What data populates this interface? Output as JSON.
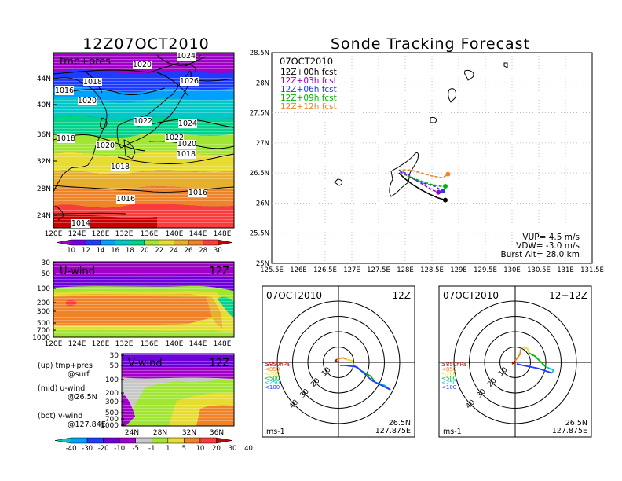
{
  "main_title": "12Z07OCT2010",
  "map": {
    "label": "tmp+pres",
    "lon_ticks": [
      "120E",
      "124E",
      "128E",
      "132E",
      "136E",
      "140E",
      "144E",
      "148E"
    ],
    "lat_ticks": [
      "44N",
      "40N",
      "36N",
      "32N",
      "28N",
      "24N"
    ],
    "isobar_labels": [
      "1024",
      "1020",
      "1018",
      "1016",
      "1020",
      "1026",
      "1022",
      "1024",
      "1018",
      "1022",
      "1020",
      "1020",
      "1018",
      "1018",
      "1016",
      "1016",
      "1014"
    ],
    "colorbar": {
      "labels": [
        "10",
        "12",
        "14",
        "16",
        "18",
        "20",
        "22",
        "24",
        "26",
        "28",
        "30"
      ],
      "colors": [
        "#a000c8",
        "#6e00dc",
        "#1e3cff",
        "#00a0ff",
        "#00c8c8",
        "#00d28c",
        "#a0e632",
        "#e6dc32",
        "#e6af2d",
        "#f08228",
        "#fa3c3c",
        "#c80000"
      ]
    }
  },
  "uwind": {
    "label": "U-wind",
    "time": "12Z",
    "p_ticks": [
      "30",
      "50",
      "100",
      "200",
      "300",
      "500",
      "700",
      "1000"
    ],
    "lon_ticks": [
      "120E",
      "124E",
      "128E",
      "132E",
      "136E",
      "140E",
      "144E",
      "148E"
    ]
  },
  "vwind": {
    "label": "V-wind",
    "time": "12Z",
    "p_ticks": [
      "30",
      "50",
      "100",
      "200",
      "300",
      "500",
      "700",
      "1000"
    ],
    "lat_ticks": [
      "24N",
      "28N",
      "32N",
      "36N"
    ]
  },
  "legend_text": [
    {
      "line1": "(up) tmp+pres",
      "line2": "@surf"
    },
    {
      "line1": "(mid) u-wind",
      "line2": "@26.5N"
    },
    {
      "line1": "(bot) v-wind",
      "line2": "@127.84E"
    }
  ],
  "wind_colorbar": {
    "labels": [
      "-40",
      "-30",
      "-20",
      "-10",
      "-5",
      "-1",
      "1",
      "5",
      "10",
      "20",
      "30",
      "40"
    ],
    "colors": [
      "#00c8c8",
      "#00a0ff",
      "#1e3cff",
      "#6e00dc",
      "#a000c8",
      "#c8c8c8",
      "#a0e632",
      "#e6dc32",
      "#f08228",
      "#fa3c3c",
      "#c80000"
    ]
  },
  "track": {
    "title": "Sonde Tracking Forecast",
    "date": "07OCT2010",
    "legend": [
      {
        "text": "12Z+00h  fcst",
        "color": "#000000"
      },
      {
        "text": "12Z+03h  fcst",
        "color": "#a000c8"
      },
      {
        "text": "12Z+06h  fcst",
        "color": "#1e3cff"
      },
      {
        "text": "12Z+09h  fcst",
        "color": "#00b400"
      },
      {
        "text": "12Z+12h  fcst",
        "color": "#f08228"
      }
    ],
    "lat_ticks": [
      "28.5N",
      "28N",
      "27.5N",
      "27N",
      "26.5N",
      "26N",
      "25.5N",
      "25N"
    ],
    "lon_ticks": [
      "125.5E",
      "126E",
      "126.5E",
      "127E",
      "127.5E",
      "128E",
      "128.5E",
      "129E",
      "129.5E",
      "130E",
      "130.5E",
      "131E",
      "131.5E"
    ],
    "params": [
      "VUP= 4.5 m/s",
      "VDW= -3.0 m/s",
      "Burst Alt= 28.0 km"
    ]
  },
  "hodo_left": {
    "date": "07OCT2010",
    "time": "12Z",
    "loc1": "26.5N",
    "loc2": "127.875E",
    "unit": "ms-1",
    "ring_labels": [
      "10",
      "20",
      "30",
      "40"
    ],
    "levels": [
      {
        "text": "≥850hPa",
        "color": "#c80000"
      },
      {
        "text": "<850",
        "color": "#f08228"
      },
      {
        "text": "<700",
        "color": "#e6dc32"
      },
      {
        "text": "<500",
        "color": "#00b400"
      },
      {
        "text": "<250",
        "color": "#00c8c8"
      },
      {
        "text": "<100",
        "color": "#1e3cff"
      }
    ]
  },
  "hodo_right": {
    "date": "07OCT2010",
    "time": "12+12Z",
    "loc1": "26.5N",
    "loc2": "127.875E",
    "unit": "ms-1",
    "ring_labels": [
      "10",
      "20",
      "30",
      "40"
    ],
    "levels": [
      {
        "text": "≥850hPa",
        "color": "#c80000"
      },
      {
        "text": "<850",
        "color": "#f08228"
      },
      {
        "text": "<700",
        "color": "#e6dc32"
      },
      {
        "text": "<500",
        "color": "#00b400"
      },
      {
        "text": "<250",
        "color": "#00c8c8"
      },
      {
        "text": "<100",
        "color": "#1e3cff"
      }
    ]
  },
  "chart_data": [
    {
      "type": "line",
      "title": "Sonde Tracking Forecast",
      "xlabel": "",
      "ylabel": "",
      "xlim": [
        125.5,
        131.5
      ],
      "ylim": [
        25.0,
        28.5
      ],
      "grid": true,
      "legend_placement": "top-left",
      "series": [
        {
          "name": "12Z+00h  fcst",
          "color": "#000000",
          "x": [
            127.88,
            128.0,
            128.15,
            128.3,
            128.45,
            128.6,
            128.75
          ],
          "y": [
            26.5,
            26.4,
            26.3,
            26.22,
            26.15,
            26.09,
            26.05
          ]
        },
        {
          "name": "12Z+03h  fcst",
          "color": "#a000c8",
          "x": [
            127.9,
            128.05,
            128.2,
            128.35,
            128.5,
            128.62
          ],
          "y": [
            26.52,
            26.45,
            26.38,
            26.3,
            26.22,
            26.18
          ]
        },
        {
          "name": "12Z+06h  fcst",
          "color": "#1e3cff",
          "x": [
            127.88,
            128.05,
            128.2,
            128.38,
            128.55,
            128.7
          ],
          "y": [
            26.55,
            26.48,
            26.38,
            26.32,
            26.28,
            26.2
          ]
        },
        {
          "name": "12Z+09h  fcst",
          "color": "#00b400",
          "x": [
            127.9,
            128.05,
            128.25,
            128.45,
            128.65,
            128.75
          ],
          "y": [
            26.55,
            26.45,
            26.38,
            26.32,
            26.28,
            26.28
          ]
        },
        {
          "name": "12Z+12h  fcst",
          "color": "#f08228",
          "x": [
            127.95,
            128.1,
            128.3,
            128.5,
            128.7,
            128.8
          ],
          "y": [
            26.55,
            26.55,
            26.5,
            26.45,
            26.42,
            26.48
          ]
        }
      ]
    },
    {
      "type": "line",
      "title": "07OCT2010 12Z",
      "xlabel": "u (ms-1)",
      "ylabel": "v (ms-1)",
      "xlim": [
        -40,
        40
      ],
      "ylim": [
        -40,
        40
      ],
      "series": [
        {
          "name": "≥850hPa",
          "color": "#c80000",
          "x": [
            0,
            -2,
            -1
          ],
          "y": [
            0,
            1,
            2
          ]
        },
        {
          "name": "<850",
          "color": "#f08228",
          "x": [
            -1,
            3,
            5
          ],
          "y": [
            2,
            3,
            2
          ]
        },
        {
          "name": "<700",
          "color": "#e6dc32",
          "x": [
            5,
            9,
            10
          ],
          "y": [
            2,
            1,
            -2
          ]
        },
        {
          "name": "<500",
          "color": "#00b400",
          "x": [
            10,
            14,
            21,
            24
          ],
          "y": [
            -2,
            -5,
            -9,
            -13
          ]
        },
        {
          "name": "<250",
          "color": "#00c8c8",
          "x": [
            24,
            30,
            34
          ],
          "y": [
            -13,
            -15,
            -18
          ]
        },
        {
          "name": "<100",
          "color": "#1e3cff",
          "x": [
            34,
            22,
            12,
            4,
            1
          ],
          "y": [
            -18,
            -12,
            -3,
            -2,
            -2
          ]
        }
      ]
    },
    {
      "type": "line",
      "title": "07OCT2010 12+12Z",
      "xlabel": "u (ms-1)",
      "ylabel": "v (ms-1)",
      "xlim": [
        -40,
        40
      ],
      "ylim": [
        -40,
        40
      ],
      "series": [
        {
          "name": "≥850hPa",
          "color": "#c80000",
          "x": [
            0,
            -2,
            0
          ],
          "y": [
            0,
            -1,
            1
          ]
        },
        {
          "name": "<850",
          "color": "#f08228",
          "x": [
            0,
            3,
            4
          ],
          "y": [
            1,
            5,
            10
          ]
        },
        {
          "name": "<700",
          "color": "#e6dc32",
          "x": [
            4,
            8,
            9
          ],
          "y": [
            10,
            9,
            6
          ]
        },
        {
          "name": "<500",
          "color": "#00b400",
          "x": [
            9,
            13,
            20
          ],
          "y": [
            6,
            4,
            -3
          ]
        },
        {
          "name": "<250",
          "color": "#00c8c8",
          "x": [
            20,
            25,
            24
          ],
          "y": [
            -3,
            -5,
            -7
          ]
        },
        {
          "name": "<100",
          "color": "#1e3cff",
          "x": [
            24,
            15,
            5,
            1
          ],
          "y": [
            -7,
            -4,
            -2,
            -1
          ]
        }
      ]
    }
  ]
}
